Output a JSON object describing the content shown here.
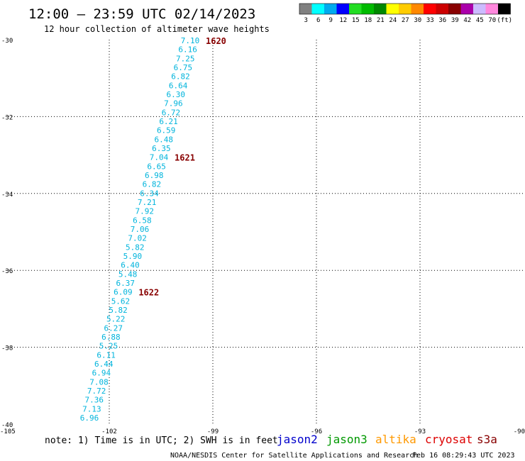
{
  "title": "12:00 – 23:59 UTC 02/14/2023",
  "subtitle": "12 hour collection of altimeter wave heights",
  "colorbar": {
    "colors": [
      "#808080",
      "#00ffff",
      "#00aaee",
      "#0000ff",
      "#22dd22",
      "#00bb00",
      "#008800",
      "#ffff00",
      "#ffcc00",
      "#ff8800",
      "#ff0000",
      "#cc0000",
      "#880000",
      "#aa00aa",
      "#ccbbff",
      "#ff88dd",
      "#000000"
    ],
    "labels": [
      "3",
      "6",
      "9",
      "12",
      "15",
      "18",
      "21",
      "24",
      "27",
      "30",
      "33",
      "36",
      "39",
      "42",
      "45",
      "70",
      "(ft)"
    ]
  },
  "map": {
    "lon_range": [
      -105,
      -90
    ],
    "lat_range": [
      -40,
      -30
    ],
    "lon_ticks": [
      "-105",
      "-102",
      "-99",
      "-96",
      "-93",
      "-90"
    ],
    "lat_ticks": [
      "-30",
      "-32",
      "-34",
      "-36",
      "-38",
      "-40"
    ]
  },
  "track": {
    "color": "#00b4dc",
    "values": [
      "7.10",
      "6.16",
      "7.25",
      "6.75",
      "6.82",
      "6.64",
      "6.30",
      "7.96",
      "6.72",
      "6.21",
      "6.59",
      "6.48",
      "6.35",
      "7.04",
      "6.65",
      "6.98",
      "6.82",
      "6.34",
      "7.21",
      "7.92",
      "6.58",
      "7.06",
      "7.02",
      "5.82",
      "5.90",
      "6.40",
      "5.48",
      "6.37",
      "6.09",
      "5.62",
      "5.82",
      "5.22",
      "6.27",
      "6.88",
      "5.25",
      "6.11",
      "6.44",
      "6.94",
      "7.08",
      "7.72",
      "7.36",
      "7.13",
      "6.96"
    ]
  },
  "time_labels": [
    {
      "text": "1620",
      "index": 0
    },
    {
      "text": "1621",
      "index": 13
    },
    {
      "text": "1622",
      "index": 28
    }
  ],
  "time_label_color": "#880000",
  "note": "note: 1) Time is in UTC; 2) SWH is in feet",
  "satellites": [
    {
      "name": "jason2",
      "color": "#0000cc"
    },
    {
      "name": "jason3",
      "color": "#009900"
    },
    {
      "name": "altika",
      "color": "#ff9900"
    },
    {
      "name": "cryosat",
      "color": "#dd0000"
    },
    {
      "name": "s3a",
      "color": "#880000"
    }
  ],
  "footer_left": "NOAA/NESDIS Center for Satellite Applications and Research",
  "footer_right": "Feb 16 08:29:43 UTC 2023"
}
